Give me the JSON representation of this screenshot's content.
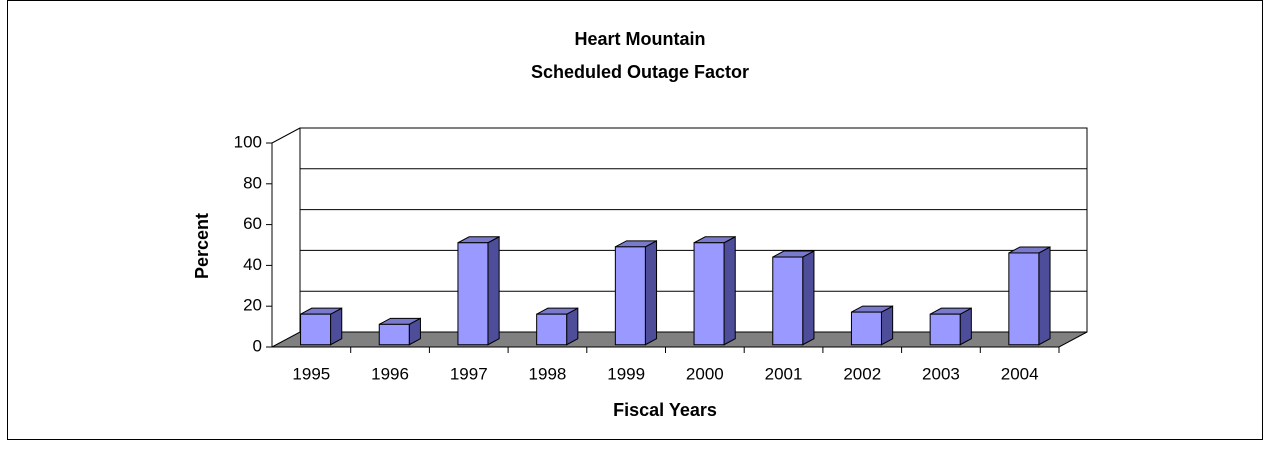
{
  "chart_data": {
    "type": "bar3d",
    "title": [
      "Heart Mountain",
      "Scheduled Outage Factor"
    ],
    "x_label": "Fiscal Years",
    "y_label": "Percent",
    "categories": [
      "1995",
      "1996",
      "1997",
      "1998",
      "1999",
      "2000",
      "2001",
      "2002",
      "2003",
      "2004"
    ],
    "values": [
      15,
      10,
      50,
      15,
      48,
      50,
      43,
      16,
      15,
      45
    ],
    "color": "#9999ff",
    "ylim": [
      0,
      100
    ],
    "yticks": [
      0,
      20,
      40,
      60,
      80,
      100
    ],
    "grid": true
  }
}
